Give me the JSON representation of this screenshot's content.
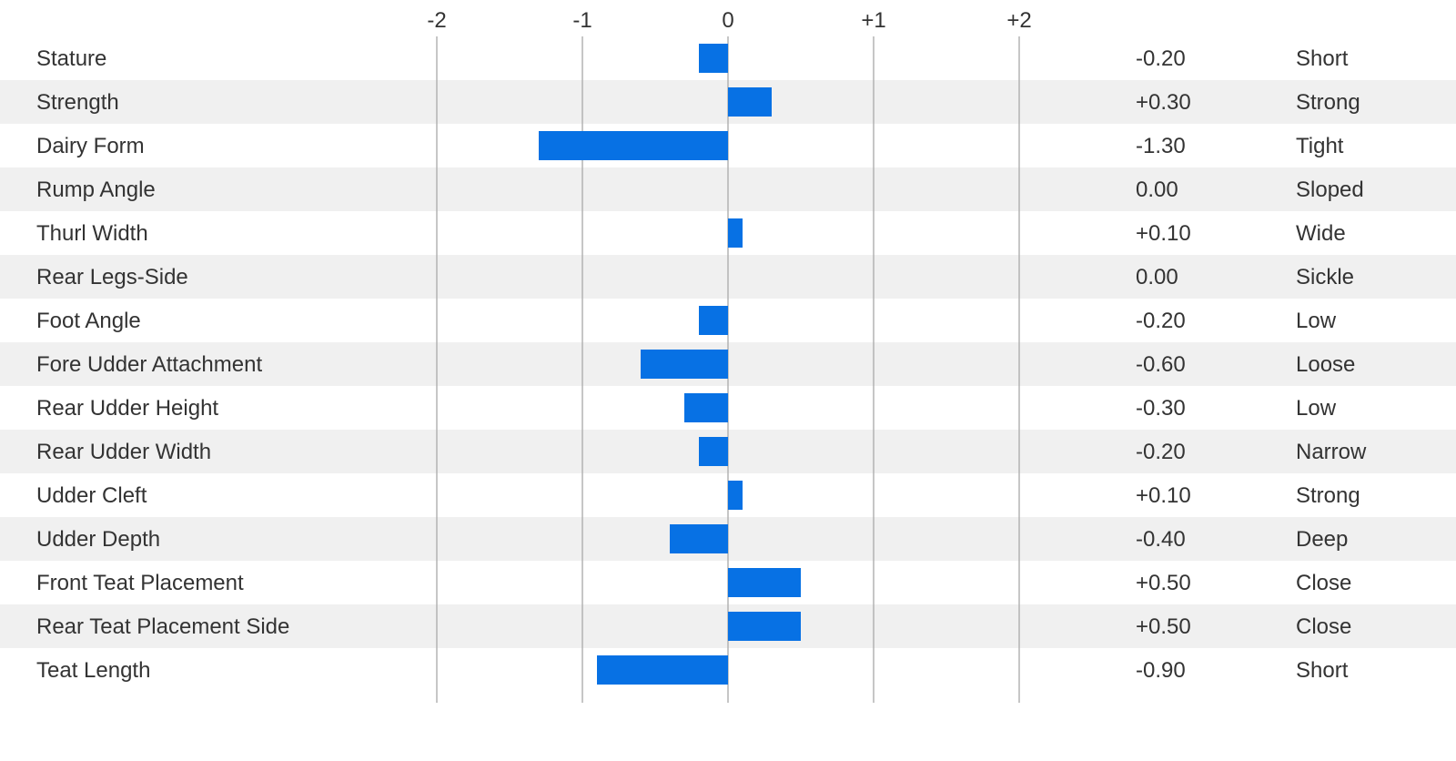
{
  "colors": {
    "bar": "#0771e4",
    "stripe": "#f0f0f0",
    "grid": "#b3b3b3",
    "text": "#333333"
  },
  "chart_data": {
    "type": "bar",
    "orientation": "horizontal",
    "title": "",
    "xlabel": "",
    "ylabel": "",
    "xlim": [
      -2,
      2
    ],
    "x_ticks": [
      -2,
      -1,
      0,
      1,
      2
    ],
    "x_tick_labels": [
      "-2",
      "-1",
      "0",
      "+1",
      "+2"
    ],
    "grid": true,
    "striped_rows": true,
    "categories": [
      "Stature",
      "Strength",
      "Dairy Form",
      "Rump Angle",
      "Thurl Width",
      "Rear Legs-Side",
      "Foot Angle",
      "Fore Udder Attachment",
      "Rear Udder Height",
      "Rear Udder Width",
      "Udder Cleft",
      "Udder Depth",
      "Front Teat Placement",
      "Rear Teat Placement Side",
      "Teat Length"
    ],
    "values": [
      -0.2,
      0.3,
      -1.3,
      0.0,
      0.1,
      0.0,
      -0.2,
      -0.6,
      -0.3,
      -0.2,
      0.1,
      -0.4,
      0.5,
      0.5,
      -0.9
    ],
    "value_labels": [
      "-0.20",
      "+0.30",
      "-1.30",
      "0.00",
      "+0.10",
      "0.00",
      "-0.20",
      "-0.60",
      "-0.30",
      "-0.20",
      "+0.10",
      "-0.40",
      "+0.50",
      "+0.50",
      "-0.90"
    ],
    "descriptors": [
      "Short",
      "Strong",
      "Tight",
      "Sloped",
      "Wide",
      "Sickle",
      "Low",
      "Loose",
      "Low",
      "Narrow",
      "Strong",
      "Deep",
      "Close",
      "Close",
      "Short"
    ]
  }
}
